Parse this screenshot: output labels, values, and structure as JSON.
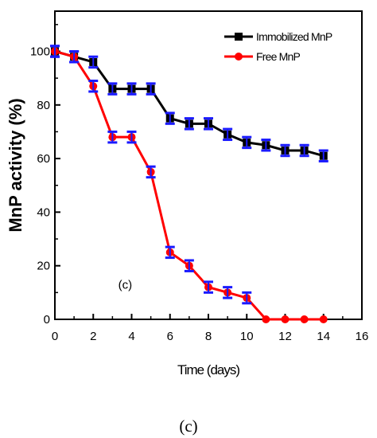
{
  "chart_data": {
    "type": "line",
    "title": "",
    "xlabel": "Time (days)",
    "ylabel": "MnP activity (%)",
    "xlim": [
      0,
      16
    ],
    "ylim": [
      0,
      115
    ],
    "x_ticks": [
      0,
      2,
      4,
      6,
      8,
      10,
      12,
      14,
      16
    ],
    "y_ticks": [
      0,
      20,
      40,
      60,
      80,
      100
    ],
    "grid": false,
    "legend_position": "top-right",
    "annotation": "(c)",
    "series": [
      {
        "name": "Immobilized MnP",
        "color": "#000000",
        "marker": "square",
        "x": [
          0,
          1,
          2,
          3,
          4,
          5,
          6,
          7,
          8,
          9,
          10,
          11,
          12,
          13,
          14
        ],
        "y": [
          100,
          98,
          96,
          86,
          86,
          86,
          75,
          73,
          73,
          69,
          66,
          65,
          63,
          63,
          61
        ],
        "error": [
          2,
          2,
          2,
          2,
          2,
          2,
          2,
          2,
          2,
          2,
          2,
          2,
          2,
          2,
          2
        ]
      },
      {
        "name": "Free MnP",
        "color": "#ff0000",
        "marker": "circle",
        "x": [
          0,
          1,
          2,
          3,
          4,
          5,
          6,
          7,
          8,
          9,
          10,
          11,
          12,
          13,
          14
        ],
        "y": [
          100,
          98,
          87,
          68,
          68,
          55,
          25,
          20,
          12,
          10,
          8,
          0,
          0,
          0,
          0
        ],
        "error": [
          2,
          2,
          2,
          2,
          2,
          2,
          2,
          2,
          2,
          2,
          2,
          0,
          0,
          0,
          0
        ]
      }
    ],
    "error_bar_color": "#1a1aff"
  },
  "caption": "(c)"
}
